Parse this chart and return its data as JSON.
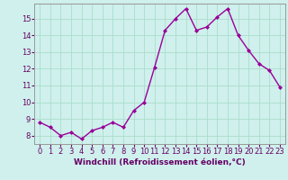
{
  "x": [
    0,
    1,
    2,
    3,
    4,
    5,
    6,
    7,
    8,
    9,
    10,
    11,
    12,
    13,
    14,
    15,
    16,
    17,
    18,
    19,
    20,
    21,
    22,
    23
  ],
  "y": [
    8.8,
    8.5,
    8.0,
    8.2,
    7.8,
    8.3,
    8.5,
    8.8,
    8.5,
    9.5,
    10.0,
    12.1,
    14.3,
    15.0,
    15.6,
    14.3,
    14.5,
    15.1,
    15.6,
    14.0,
    13.1,
    12.3,
    11.9,
    10.9
  ],
  "line_color": "#990099",
  "marker": "D",
  "marker_size": 2.0,
  "linewidth": 1.0,
  "bg_color": "#cff0ec",
  "grid_color": "#aaddcc",
  "xlabel": "Windchill (Refroidissement éolien,°C)",
  "xlabel_fontsize": 6.5,
  "tick_fontsize": 6.0,
  "xlim": [
    -0.5,
    23.5
  ],
  "ylim": [
    7.5,
    15.9
  ],
  "yticks": [
    8,
    9,
    10,
    11,
    12,
    13,
    14,
    15
  ],
  "xticks": [
    0,
    1,
    2,
    3,
    4,
    5,
    6,
    7,
    8,
    9,
    10,
    11,
    12,
    13,
    14,
    15,
    16,
    17,
    18,
    19,
    20,
    21,
    22,
    23
  ]
}
